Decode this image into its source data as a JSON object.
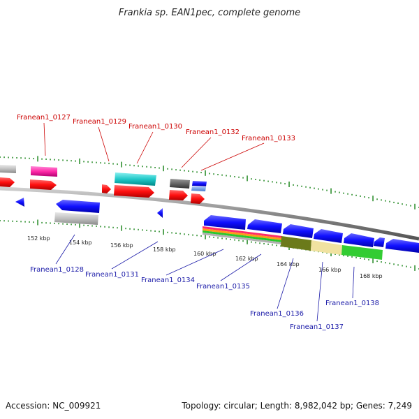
{
  "title": "Frankia sp. EAN1pec, complete genome",
  "accession": "Accession: NC_009921",
  "topology": "Topology: circular; Length: 8,982,042 bp; Genes: 7,249",
  "labels_top": [
    "Franean1_0127",
    "Franean1_0129",
    "Franean1_0130",
    "Franean1_0132",
    "Franean1_0133"
  ],
  "labels_bottom": [
    "Franean1_0128",
    "Franean1_0131",
    "Franean1_0134",
    "Franean1_0135",
    "Franean1_0136",
    "Franean1_0137",
    "Franean1_0138"
  ],
  "scale_ticks": [
    "152 kbp",
    "154 kbp",
    "156 kbp",
    "158 kbp",
    "160 kbp",
    "162 kbp",
    "164 kbp",
    "166 kbp",
    "168 kbp"
  ],
  "colors": {
    "forward_gene": "#ff0000",
    "reverse_gene": "#0000ff",
    "tick": "#228822",
    "backbone": "#888888",
    "label_top": "#cc0000",
    "label_bottom": "#1a1aa8"
  }
}
